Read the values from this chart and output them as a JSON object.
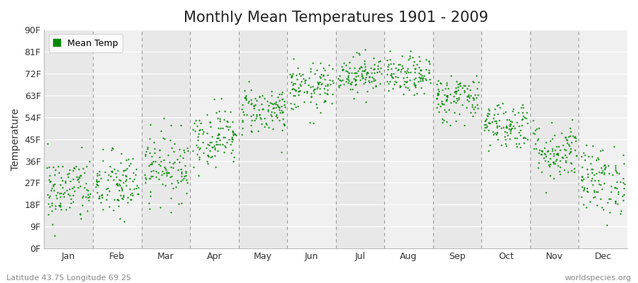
{
  "title": "Monthly Mean Temperatures 1901 - 2009",
  "ylabel": "Temperature",
  "xlabel_months": [
    "Jan",
    "Feb",
    "Mar",
    "Apr",
    "May",
    "Jun",
    "Jul",
    "Aug",
    "Sep",
    "Oct",
    "Nov",
    "Dec"
  ],
  "ytick_labels": [
    "0F",
    "9F",
    "18F",
    "27F",
    "36F",
    "45F",
    "54F",
    "63F",
    "72F",
    "81F",
    "90F"
  ],
  "ytick_values": [
    0,
    9,
    18,
    27,
    36,
    45,
    54,
    63,
    72,
    81,
    90
  ],
  "ylim": [
    0,
    90
  ],
  "dot_color": "#008800",
  "dot_size": 2.5,
  "fig_bg_color": "#ffffff",
  "plot_bg_color": "#f0f0f0",
  "band_even_color": "#e8e8e8",
  "band_odd_color": "#f0f0f0",
  "title_fontsize": 15,
  "legend_label": "Mean Temp",
  "footer_left": "Latitude 43.75 Longitude 69.25",
  "footer_right": "worldspecies.org",
  "monthly_means_F": [
    24,
    26,
    34,
    46,
    57,
    66,
    72,
    71,
    62,
    51,
    40,
    28
  ],
  "monthly_std_F": [
    7,
    7,
    7,
    6,
    5,
    5,
    4,
    4,
    5,
    5,
    6,
    7
  ],
  "n_years": 109,
  "dashed_line_color": "#999999",
  "grid_line_color": "#ffffff",
  "footer_fontsize": 8,
  "footer_color": "#888888",
  "tick_fontsize": 9,
  "ylabel_fontsize": 10
}
